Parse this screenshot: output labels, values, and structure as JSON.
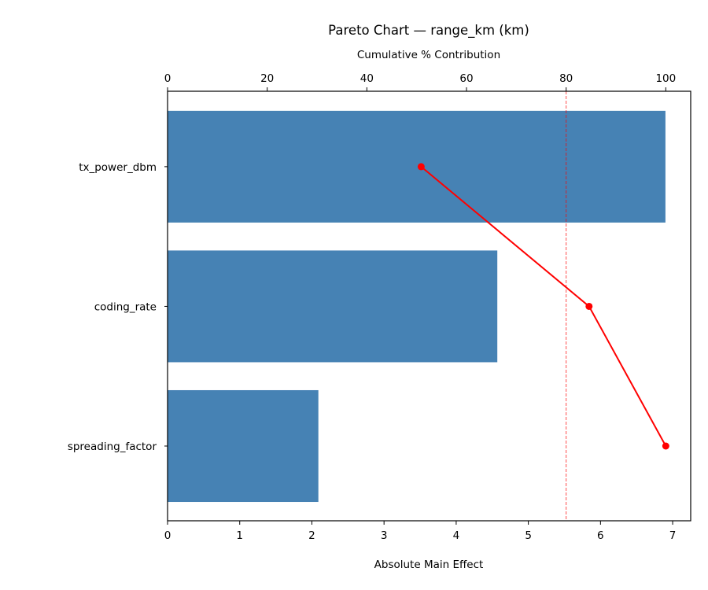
{
  "chart_data": {
    "type": "bar",
    "orientation": "horizontal",
    "title": "Pareto Chart — range_km (km)",
    "xlabel": "Absolute Main Effect",
    "ylabel": "",
    "secondary_xlabel": "Cumulative % Contribution",
    "categories": [
      "tx_power_dbm",
      "coding_rate",
      "spreading_factor"
    ],
    "values": [
      6.9,
      4.57,
      2.09
    ],
    "cumulative_percent": [
      50.9,
      84.6,
      100.0
    ],
    "threshold_percent": 80,
    "xlim": [
      0,
      7.25
    ],
    "secondary_xlim": [
      0,
      105
    ],
    "xticks": [
      "0",
      "1",
      "2",
      "3",
      "4",
      "5",
      "6",
      "7"
    ],
    "secondary_xticks": [
      "0",
      "20",
      "40",
      "60",
      "80",
      "100"
    ],
    "grid": false,
    "colors": {
      "bars": "#4682b4",
      "cumulative_line": "#ff0000",
      "threshold_line": "#ff0000"
    }
  }
}
